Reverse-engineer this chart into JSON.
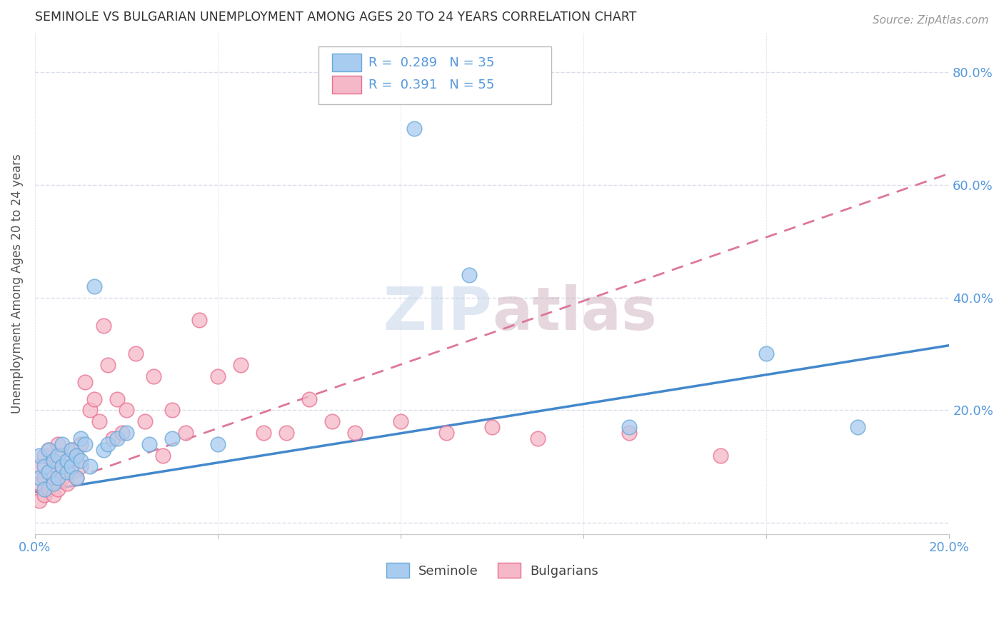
{
  "title": "SEMINOLE VS BULGARIAN UNEMPLOYMENT AMONG AGES 20 TO 24 YEARS CORRELATION CHART",
  "source": "Source: ZipAtlas.com",
  "ylabel": "Unemployment Among Ages 20 to 24 years",
  "xlim": [
    0.0,
    0.2
  ],
  "ylim": [
    -0.02,
    0.87
  ],
  "xticks": [
    0.0,
    0.04,
    0.08,
    0.12,
    0.16,
    0.2
  ],
  "yticks": [
    0.0,
    0.2,
    0.4,
    0.6,
    0.8
  ],
  "ytick_labels_right": [
    "",
    "20.0%",
    "40.0%",
    "60.0%",
    "80.0%"
  ],
  "xtick_labels": [
    "0.0%",
    "",
    "",
    "",
    "",
    "20.0%"
  ],
  "watermark": "ZIPatlas",
  "seminole_R": 0.289,
  "seminole_N": 35,
  "bulgarian_R": 0.391,
  "bulgarian_N": 55,
  "seminole_color": "#a8ccef",
  "bulgarian_color": "#f5b8c8",
  "seminole_edge_color": "#6aaad8",
  "bulgarian_edge_color": "#e87090",
  "seminole_line_color": "#4488cc",
  "bulgarian_line_color": "#dd7799",
  "axis_color": "#5599dd",
  "grid_color": "#d8dde8",
  "seminole_points_x": [
    0.001,
    0.001,
    0.002,
    0.002,
    0.003,
    0.003,
    0.004,
    0.004,
    0.005,
    0.005,
    0.006,
    0.006,
    0.007,
    0.007,
    0.008,
    0.008,
    0.009,
    0.009,
    0.01,
    0.01,
    0.011,
    0.012,
    0.013,
    0.015,
    0.016,
    0.018,
    0.02,
    0.025,
    0.03,
    0.04,
    0.083,
    0.095,
    0.13,
    0.16,
    0.18
  ],
  "seminole_points_y": [
    0.08,
    0.12,
    0.06,
    0.1,
    0.09,
    0.13,
    0.07,
    0.11,
    0.08,
    0.12,
    0.1,
    0.14,
    0.09,
    0.11,
    0.1,
    0.13,
    0.08,
    0.12,
    0.11,
    0.15,
    0.14,
    0.1,
    0.42,
    0.13,
    0.14,
    0.15,
    0.16,
    0.14,
    0.15,
    0.14,
    0.7,
    0.44,
    0.17,
    0.3,
    0.17
  ],
  "bulgarian_points_x": [
    0.001,
    0.001,
    0.001,
    0.002,
    0.002,
    0.002,
    0.003,
    0.003,
    0.003,
    0.004,
    0.004,
    0.004,
    0.005,
    0.005,
    0.005,
    0.006,
    0.006,
    0.007,
    0.007,
    0.008,
    0.008,
    0.009,
    0.009,
    0.01,
    0.01,
    0.011,
    0.012,
    0.013,
    0.014,
    0.015,
    0.016,
    0.017,
    0.018,
    0.019,
    0.02,
    0.022,
    0.024,
    0.026,
    0.028,
    0.03,
    0.033,
    0.036,
    0.04,
    0.045,
    0.05,
    0.055,
    0.06,
    0.065,
    0.07,
    0.08,
    0.09,
    0.1,
    0.11,
    0.13,
    0.15
  ],
  "bulgarian_points_y": [
    0.04,
    0.07,
    0.1,
    0.05,
    0.08,
    0.12,
    0.06,
    0.09,
    0.13,
    0.05,
    0.08,
    0.11,
    0.06,
    0.1,
    0.14,
    0.08,
    0.12,
    0.07,
    0.11,
    0.09,
    0.13,
    0.08,
    0.12,
    0.1,
    0.14,
    0.25,
    0.2,
    0.22,
    0.18,
    0.35,
    0.28,
    0.15,
    0.22,
    0.16,
    0.2,
    0.3,
    0.18,
    0.26,
    0.12,
    0.2,
    0.16,
    0.36,
    0.26,
    0.28,
    0.16,
    0.16,
    0.22,
    0.18,
    0.16,
    0.18,
    0.16,
    0.17,
    0.15,
    0.16,
    0.12
  ],
  "seminole_line_x0": 0.0,
  "seminole_line_y0": 0.055,
  "seminole_line_x1": 0.2,
  "seminole_line_y1": 0.315,
  "bulgarian_line_x0": 0.0,
  "bulgarian_line_y0": 0.055,
  "bulgarian_line_x1": 0.2,
  "bulgarian_line_y1": 0.62
}
